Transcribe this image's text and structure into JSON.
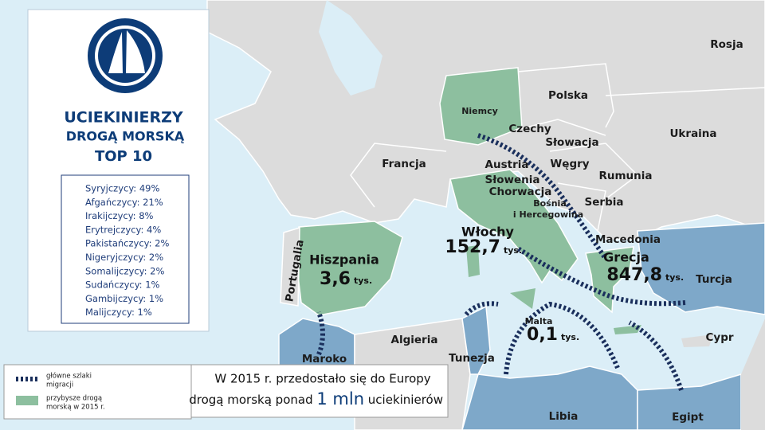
{
  "panel": {
    "title": [
      "UCIEKINIERZY",
      "DROGĄ MORSKĄ",
      "TOP 10"
    ],
    "list": [
      "Syryjczycy: 49%",
      "Afgańczycy: 21%",
      "Irakijczycy: 8%",
      "Erytrejczycy: 4%",
      "Pakistańczycy: 2%",
      "Nigeryjczycy: 2%",
      "Somalijczycy: 2%",
      "Sudańczycy: 1%",
      "Gambijczycy: 1%",
      "Malijczycy: 1%"
    ]
  },
  "map": {
    "countries": [
      "Rosja",
      "Polska",
      "Ukraina",
      "Niemcy",
      "Czechy",
      "Słowacja",
      "Francja",
      "Austria",
      "Węgry",
      "Rumunia",
      "Słowenia",
      "Chorwacja",
      "Serbia",
      "Bośnia",
      "i Hercegowina",
      "Macedonia",
      "Turcja",
      "Portugalia",
      "Algieria",
      "Cypr",
      "Maroko",
      "Tunezja",
      "Libia",
      "Egipt"
    ],
    "arrivals": [
      {
        "country": "Hiszpania",
        "value": "3,6",
        "unit": "tys."
      },
      {
        "country": "Włochy",
        "value": "152,7",
        "unit": "tys."
      },
      {
        "country": "Grecja",
        "value": "847,8",
        "unit": "tys."
      },
      {
        "country": "Malta",
        "value": "0,1",
        "unit": "tys."
      }
    ]
  },
  "legend": {
    "routes": [
      "główne szlaki",
      "migracji"
    ],
    "arrivals": [
      "przybysze drogą",
      "morską w 2015 r."
    ]
  },
  "footer": {
    "line1": "W 2015 r. przedostało się do Europy",
    "line2_start": "drogą morską ponad",
    "highlight": "1 mln",
    "line2_end": "uciekinierów"
  }
}
